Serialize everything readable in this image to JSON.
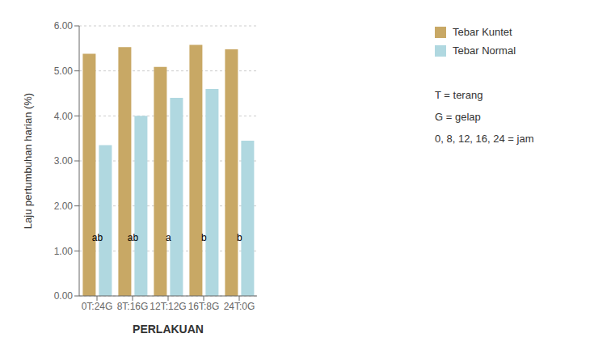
{
  "chart_data": {
    "type": "bar",
    "categories": [
      "0T:24G",
      "8T:16G",
      "12T:12G",
      "16T:8G",
      "24T:0G"
    ],
    "series": [
      {
        "name": "Tebar Kuntet",
        "color": "#C8A865",
        "values": [
          5.38,
          5.53,
          5.09,
          5.58,
          5.48
        ]
      },
      {
        "name": "Tebar Normal",
        "color": "#B0D8E0",
        "values": [
          3.35,
          4.0,
          4.4,
          4.6,
          3.45
        ]
      }
    ],
    "annotations": [
      {
        "category": "0T:24G",
        "text": "ab",
        "y": 1.3
      },
      {
        "category": "8T:16G",
        "text": "ab",
        "y": 1.3
      },
      {
        "category": "12T:12G",
        "text": "a",
        "y": 1.3
      },
      {
        "category": "16T:8G",
        "text": "b",
        "y": 1.3
      },
      {
        "category": "24T:0G",
        "text": "b",
        "y": 1.3
      }
    ],
    "notes": [
      "T = terang",
      "G = gelap",
      "0, 8, 12, 16, 24 = jam"
    ],
    "xlabel": "PERLAKUAN",
    "ylabel": "Laju pertumbuhan harian (%)",
    "ylim": [
      0.0,
      6.0
    ],
    "yticks": [
      {
        "value": 0.0,
        "label": "0.00"
      },
      {
        "value": 1.0,
        "label": "1.00"
      },
      {
        "value": 2.0,
        "label": "2.00"
      },
      {
        "value": 3.0,
        "label": "3.00"
      },
      {
        "value": 4.0,
        "label": "4.00"
      },
      {
        "value": 5.0,
        "label": "5.00"
      },
      {
        "value": 6.0,
        "label": "6.00"
      }
    ],
    "grid": true,
    "legend": "right"
  }
}
